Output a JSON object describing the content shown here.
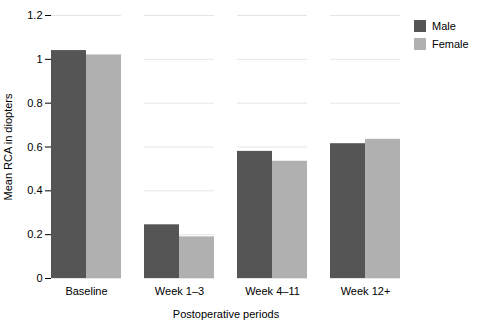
{
  "chart_data": {
    "type": "bar",
    "categories": [
      "Baseline",
      "Week 1–3",
      "Week 4–11",
      "Week 12+"
    ],
    "series": [
      {
        "name": "Male",
        "color": "#555555",
        "values": [
          1.04,
          0.245,
          0.58,
          0.615
        ]
      },
      {
        "name": "Female",
        "color": "#b0b0b0",
        "values": [
          1.02,
          0.19,
          0.535,
          0.635
        ]
      }
    ],
    "xlabel": "Postoperative periods",
    "ylabel": "Mean RCA in diopters",
    "ylim": [
      0,
      1.2
    ],
    "yticks": [
      0,
      0.2,
      0.4,
      0.6,
      0.8,
      1,
      1.2
    ],
    "grid": true,
    "legend": "right"
  }
}
